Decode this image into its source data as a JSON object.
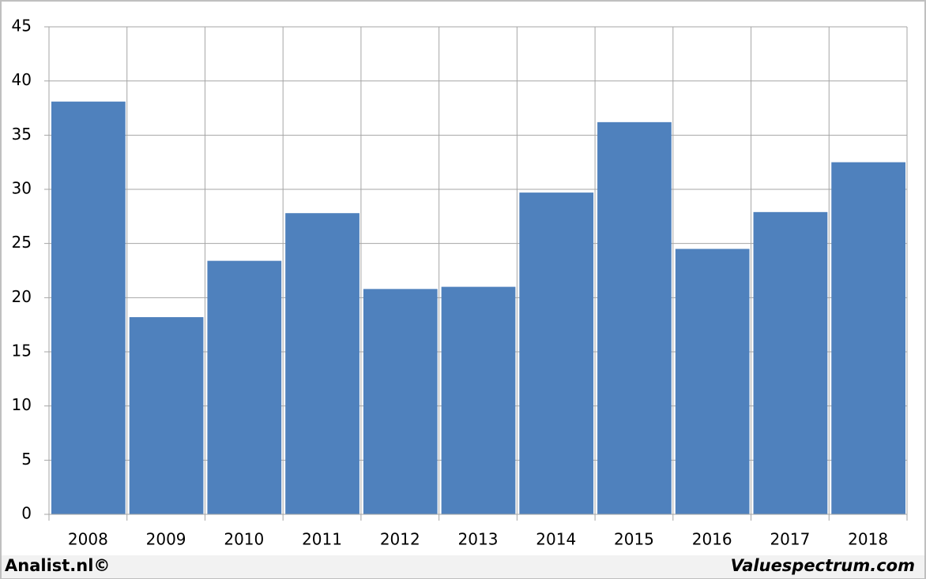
{
  "chart_data": {
    "type": "bar",
    "categories": [
      "2008",
      "2009",
      "2010",
      "2011",
      "2012",
      "2013",
      "2014",
      "2015",
      "2016",
      "2017",
      "2018"
    ],
    "values": [
      38.1,
      18.2,
      23.4,
      27.8,
      20.8,
      21.0,
      29.7,
      36.2,
      24.5,
      27.9,
      32.5
    ],
    "color": "#4f81bd",
    "ylim": [
      0,
      45
    ],
    "yticks": [
      0,
      5,
      10,
      15,
      20,
      25,
      30,
      35,
      40,
      45
    ],
    "grid": true
  },
  "footer": {
    "left": "Analist.nl©",
    "right": "Valuespectrum.com"
  }
}
